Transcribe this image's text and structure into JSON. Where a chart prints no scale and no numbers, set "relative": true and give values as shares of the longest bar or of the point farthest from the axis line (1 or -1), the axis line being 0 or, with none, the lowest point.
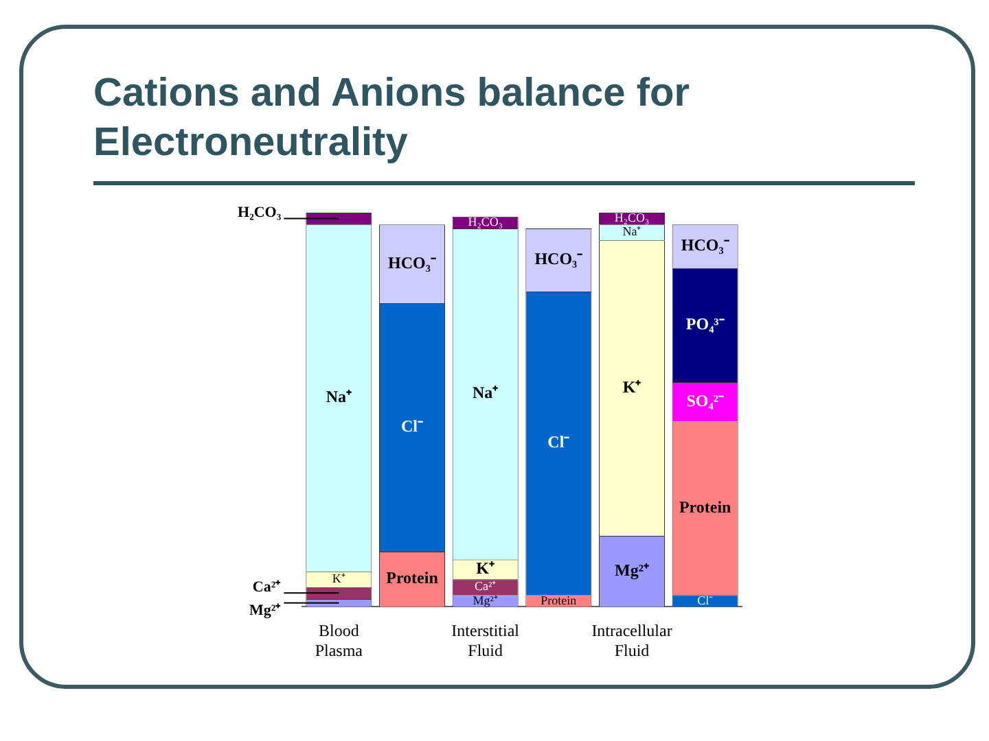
{
  "chart_data": {
    "type": "bar",
    "title": "Cations and Anions balance for Electroneutrality",
    "stacked": true,
    "relative": true,
    "grid": false,
    "legend": false,
    "categories": [
      "Blood Plasma",
      null,
      "Interstitial Fluid",
      null,
      "Intracellular Fluid",
      null
    ],
    "series": [
      {
        "name": "Mg²⁺",
        "color": "#9999ff",
        "values": [
          0.02,
          null,
          0.03,
          null,
          0.18,
          null
        ]
      },
      {
        "name": "Ca²⁺",
        "color": "#993366",
        "values": [
          0.03,
          null,
          0.04,
          null,
          null,
          null
        ]
      },
      {
        "name": "K⁺",
        "color": "#ffffcc",
        "values": [
          0.04,
          null,
          0.05,
          null,
          0.75,
          null
        ]
      },
      {
        "name": "Na⁺",
        "color": "#ccffff",
        "values": [
          0.88,
          null,
          0.84,
          null,
          0.04,
          null
        ]
      },
      {
        "name": "H₂CO₃",
        "color": "#800080",
        "values": [
          0.03,
          null,
          0.03,
          null,
          0.03,
          null
        ]
      },
      {
        "name": "Cl⁻",
        "color": "#0066cc",
        "values": [
          null,
          null,
          null,
          null,
          null,
          0.03
        ]
      },
      {
        "name": "Protein",
        "color": "#ff8080",
        "values": [
          null,
          0.14,
          null,
          0.03,
          null,
          0.44
        ]
      },
      {
        "name": "SO₄²⁻",
        "color": "#ff00ff",
        "values": [
          null,
          null,
          null,
          null,
          null,
          0.1
        ]
      },
      {
        "name": "PO₄³⁻",
        "color": "#000080",
        "values": [
          null,
          null,
          null,
          null,
          null,
          0.29
        ]
      },
      {
        "name": "Cl⁻",
        "color": "#0066cc",
        "values": [
          null,
          0.63,
          null,
          0.77,
          null,
          null
        ]
      },
      {
        "name": "HCO₃⁻",
        "color": "#ccccff",
        "values": [
          null,
          0.2,
          null,
          0.16,
          null,
          0.11
        ]
      }
    ]
  }
}
